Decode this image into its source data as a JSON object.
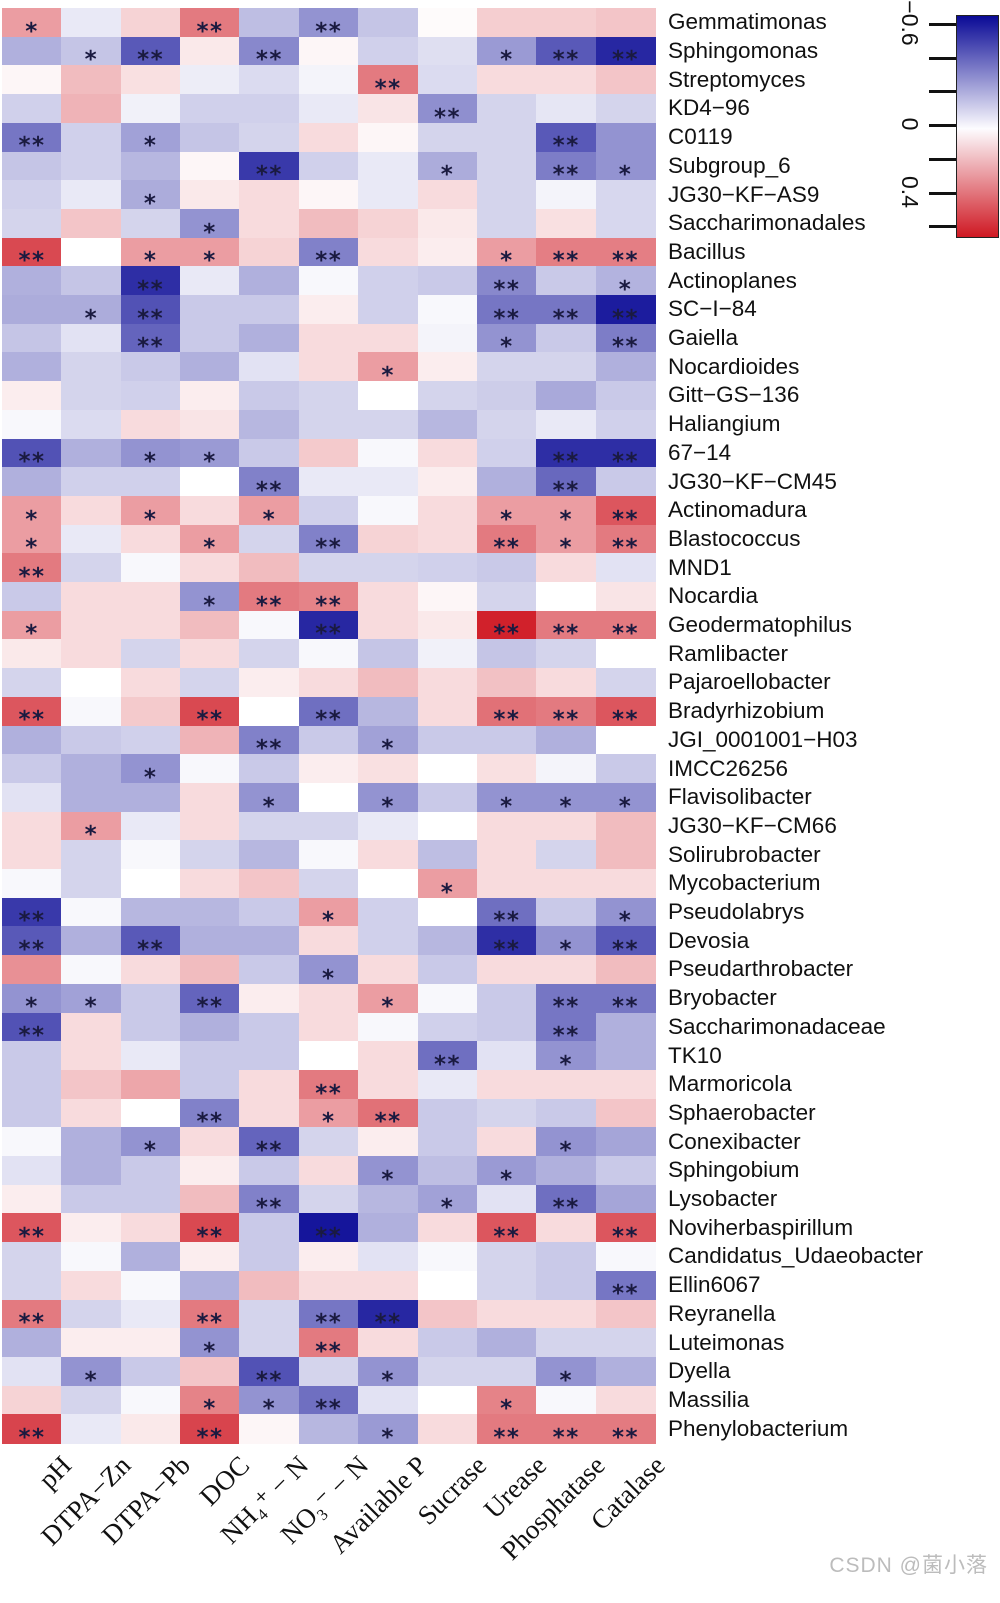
{
  "watermark": "CSDN @菌小落",
  "legend": {
    "tick_count": 7,
    "tick_labels": [
      "−0.6",
      "0",
      "0.4"
    ],
    "tick_label_positions": [
      0,
      3,
      5
    ]
  },
  "chart_data": {
    "type": "heatmap",
    "title": "",
    "xlabel": "",
    "ylabel": "",
    "legend_position": "top-right",
    "grid": false,
    "columns": [
      "pH",
      "DTPA−Zn",
      "DTPA−Pb",
      "DOC",
      "NH₄⁺ − N",
      "NO₃⁻ − N",
      "Available P",
      "Sucrase",
      "Urease",
      "Phosphatase",
      "Catalase"
    ],
    "rows": [
      "Gemmatimonas",
      "Sphingomonas",
      "Streptomyces",
      "KD4−96",
      "C0119",
      "Subgroup_6",
      "JG30−KF−AS9",
      "Saccharimonadales",
      "Bacillus",
      "Actinoplanes",
      "SC−I−84",
      "Gaiella",
      "Nocardioides",
      "Gitt−GS−136",
      "Haliangium",
      "67−14",
      "JG30−KF−CM45",
      "Actinomadura",
      "Blastococcus",
      "MND1",
      "Nocardia",
      "Geodermatophilus",
      "Ramlibacter",
      "Pajaroellobacter",
      "Bradyrhizobium",
      "JGI_0001001−H03",
      "IMCC26256",
      "Flavisolibacter",
      "JG30−KF−CM66",
      "Solirubrobacter",
      "Mycobacterium",
      "Pseudolabrys",
      "Devosia",
      "Pseudarthrobacter",
      "Bryobacter",
      "Saccharimonadaceae",
      "TK10",
      "Marmoricola",
      "Sphaerobacter",
      "Conexibacter",
      "Sphingobium",
      "Lysobacter",
      "Noviherbaspirillum",
      "Candidatus_Udaeobacter",
      "Ellin6067",
      "Reyranella",
      "Luteimonas",
      "Dyella",
      "Massilia",
      "Phenylobacterium"
    ],
    "colorscale": {
      "negative_color": "#0a0a96",
      "zero_color": "#ffffff",
      "positive_color": "#cf1822",
      "negative_max": -0.68,
      "positive_max": 0.52,
      "legend_min": -0.6,
      "legend_max": 0.6
    },
    "values": [
      [
        0.22,
        -0.06,
        0.1,
        0.3,
        -0.18,
        -0.3,
        -0.16,
        0.01,
        0.11,
        0.11,
        0.13
      ],
      [
        -0.22,
        -0.16,
        -0.46,
        0.05,
        -0.33,
        0.02,
        -0.13,
        -0.09,
        -0.28,
        -0.46,
        -0.6
      ],
      [
        0.02,
        0.15,
        0.07,
        -0.05,
        -0.1,
        -0.03,
        0.3,
        -0.1,
        0.08,
        0.08,
        0.13
      ],
      [
        -0.13,
        0.17,
        -0.04,
        -0.13,
        -0.13,
        -0.06,
        0.06,
        -0.31,
        -0.12,
        -0.07,
        -0.12
      ],
      [
        -0.38,
        -0.13,
        -0.26,
        -0.16,
        -0.12,
        0.08,
        0.02,
        -0.12,
        -0.12,
        -0.46,
        -0.3
      ],
      [
        -0.16,
        -0.13,
        -0.2,
        0.02,
        -0.55,
        -0.13,
        -0.06,
        -0.23,
        -0.12,
        -0.36,
        -0.3
      ],
      [
        -0.13,
        -0.06,
        -0.23,
        0.05,
        0.08,
        0.02,
        -0.06,
        0.08,
        -0.12,
        -0.03,
        -0.11
      ],
      [
        -0.12,
        0.13,
        -0.12,
        -0.3,
        0.08,
        0.15,
        0.1,
        0.05,
        -0.12,
        0.07,
        -0.11
      ],
      [
        0.41,
        0.0,
        0.22,
        0.22,
        0.1,
        -0.35,
        0.08,
        0.04,
        0.22,
        0.29,
        0.29
      ],
      [
        -0.22,
        -0.16,
        -0.58,
        -0.06,
        -0.22,
        -0.02,
        -0.13,
        -0.15,
        -0.33,
        -0.15,
        -0.21
      ],
      [
        -0.23,
        -0.23,
        -0.48,
        -0.15,
        -0.15,
        0.04,
        -0.13,
        -0.02,
        -0.38,
        -0.38,
        -0.63
      ],
      [
        -0.16,
        -0.08,
        -0.43,
        -0.15,
        -0.22,
        0.08,
        0.08,
        -0.03,
        -0.3,
        -0.15,
        -0.36
      ],
      [
        -0.22,
        -0.12,
        -0.15,
        -0.22,
        -0.08,
        0.08,
        0.22,
        0.04,
        -0.12,
        -0.12,
        -0.22
      ],
      [
        0.04,
        -0.12,
        -0.13,
        0.04,
        -0.15,
        -0.12,
        0.0,
        -0.12,
        -0.14,
        -0.24,
        -0.15
      ],
      [
        -0.02,
        -0.1,
        0.08,
        0.06,
        -0.2,
        -0.12,
        -0.12,
        -0.2,
        -0.12,
        -0.06,
        -0.13
      ],
      [
        -0.48,
        -0.22,
        -0.3,
        -0.28,
        -0.15,
        0.12,
        -0.02,
        0.08,
        -0.13,
        -0.58,
        -0.58
      ],
      [
        -0.22,
        -0.13,
        -0.13,
        0.0,
        -0.35,
        -0.06,
        -0.06,
        0.04,
        -0.22,
        -0.42,
        -0.15
      ],
      [
        0.22,
        0.08,
        0.22,
        0.08,
        0.22,
        -0.13,
        -0.02,
        0.08,
        0.22,
        0.22,
        0.38
      ],
      [
        0.22,
        -0.06,
        0.08,
        0.22,
        -0.12,
        -0.35,
        0.1,
        0.08,
        0.3,
        0.22,
        0.3
      ],
      [
        0.3,
        -0.12,
        -0.02,
        0.08,
        0.15,
        -0.12,
        -0.12,
        -0.13,
        -0.15,
        0.08,
        -0.08
      ],
      [
        -0.15,
        0.08,
        0.08,
        -0.3,
        0.3,
        0.28,
        0.08,
        0.02,
        -0.12,
        0.0,
        0.06
      ],
      [
        0.22,
        0.08,
        0.08,
        0.15,
        -0.02,
        -0.6,
        0.08,
        0.05,
        0.5,
        0.3,
        0.3
      ],
      [
        0.05,
        0.08,
        -0.12,
        0.08,
        -0.12,
        -0.02,
        -0.16,
        -0.04,
        -0.16,
        -0.12,
        0.0
      ],
      [
        -0.12,
        0.0,
        0.08,
        -0.12,
        0.04,
        0.08,
        0.15,
        0.08,
        0.14,
        0.08,
        -0.12
      ],
      [
        0.38,
        -0.02,
        0.12,
        0.41,
        0.0,
        -0.4,
        -0.2,
        0.08,
        0.32,
        0.3,
        0.38
      ],
      [
        -0.22,
        -0.15,
        -0.13,
        0.17,
        -0.35,
        -0.15,
        -0.26,
        -0.15,
        -0.15,
        -0.22,
        0.0
      ],
      [
        -0.15,
        -0.22,
        -0.3,
        -0.02,
        -0.15,
        0.04,
        0.07,
        0.0,
        0.07,
        -0.03,
        -0.15
      ],
      [
        -0.08,
        -0.22,
        -0.22,
        0.08,
        -0.3,
        0.0,
        -0.3,
        -0.15,
        -0.3,
        -0.3,
        -0.3
      ],
      [
        0.08,
        0.22,
        -0.06,
        0.08,
        -0.12,
        -0.12,
        -0.06,
        0.0,
        0.08,
        0.08,
        0.15
      ],
      [
        0.08,
        -0.12,
        -0.02,
        -0.12,
        -0.2,
        -0.02,
        0.08,
        -0.18,
        0.08,
        -0.12,
        0.15
      ],
      [
        -0.02,
        -0.12,
        0.0,
        0.08,
        0.13,
        -0.12,
        0.0,
        0.22,
        0.08,
        0.08,
        0.08
      ],
      [
        -0.55,
        -0.02,
        -0.2,
        -0.2,
        -0.15,
        0.22,
        -0.13,
        0.0,
        -0.4,
        -0.15,
        -0.3
      ],
      [
        -0.46,
        -0.22,
        -0.46,
        -0.22,
        -0.22,
        0.08,
        -0.13,
        -0.2,
        -0.58,
        -0.3,
        -0.46
      ],
      [
        0.25,
        -0.02,
        0.08,
        0.15,
        -0.15,
        -0.3,
        0.08,
        -0.15,
        0.08,
        0.08,
        0.15
      ],
      [
        -0.3,
        -0.26,
        -0.15,
        -0.43,
        0.04,
        0.08,
        0.22,
        -0.02,
        -0.15,
        -0.38,
        -0.38
      ],
      [
        -0.48,
        0.08,
        -0.15,
        -0.22,
        -0.15,
        0.08,
        -0.02,
        -0.13,
        -0.15,
        -0.38,
        -0.22
      ],
      [
        -0.15,
        0.08,
        -0.06,
        -0.15,
        -0.15,
        0.0,
        0.08,
        -0.4,
        -0.08,
        -0.3,
        -0.22
      ],
      [
        -0.15,
        0.13,
        0.2,
        -0.15,
        0.08,
        0.3,
        0.08,
        -0.06,
        0.08,
        0.08,
        0.08
      ],
      [
        -0.15,
        0.08,
        0.0,
        -0.35,
        0.08,
        0.22,
        0.32,
        -0.15,
        -0.12,
        -0.15,
        0.13
      ],
      [
        -0.02,
        -0.22,
        -0.3,
        0.08,
        -0.43,
        -0.12,
        0.04,
        -0.15,
        0.08,
        -0.3,
        -0.25
      ],
      [
        -0.08,
        -0.22,
        -0.15,
        0.04,
        -0.15,
        0.08,
        -0.3,
        -0.18,
        -0.28,
        -0.22,
        -0.15
      ],
      [
        0.04,
        -0.15,
        -0.15,
        0.15,
        -0.35,
        -0.12,
        -0.2,
        -0.26,
        -0.08,
        -0.4,
        -0.25
      ],
      [
        0.38,
        0.04,
        0.08,
        0.41,
        -0.15,
        -0.65,
        -0.22,
        0.08,
        0.38,
        0.08,
        0.38
      ],
      [
        -0.12,
        -0.02,
        -0.22,
        0.04,
        -0.15,
        0.04,
        -0.08,
        -0.02,
        -0.12,
        -0.15,
        -0.02
      ],
      [
        -0.12,
        0.08,
        -0.02,
        -0.22,
        0.15,
        0.08,
        0.08,
        0.0,
        -0.12,
        -0.15,
        -0.38
      ],
      [
        0.3,
        -0.12,
        -0.06,
        0.3,
        -0.12,
        -0.38,
        -0.6,
        0.13,
        0.08,
        0.08,
        0.13
      ],
      [
        -0.22,
        0.04,
        0.04,
        -0.3,
        -0.12,
        0.3,
        0.08,
        -0.15,
        -0.22,
        -0.12,
        -0.12
      ],
      [
        -0.08,
        -0.3,
        -0.15,
        0.13,
        -0.48,
        -0.12,
        -0.3,
        -0.12,
        -0.12,
        -0.3,
        -0.22
      ],
      [
        0.1,
        -0.12,
        -0.02,
        0.28,
        -0.3,
        -0.4,
        -0.08,
        0.0,
        0.28,
        -0.02,
        0.08
      ],
      [
        0.42,
        -0.06,
        0.05,
        0.42,
        0.02,
        -0.2,
        -0.28,
        0.08,
        0.3,
        0.3,
        0.3
      ]
    ],
    "significance": [
      [
        "*",
        "",
        "",
        "**",
        "",
        "**",
        "",
        "",
        "",
        "",
        ""
      ],
      [
        "",
        "*",
        "**",
        "",
        "**",
        "",
        "",
        "",
        "*",
        "**",
        "**"
      ],
      [
        "",
        "",
        "",
        "",
        "",
        "",
        "**",
        "",
        "",
        "",
        ""
      ],
      [
        "",
        "",
        "",
        "",
        "",
        "",
        "",
        "**",
        "",
        "",
        ""
      ],
      [
        "**",
        "",
        "*",
        "",
        "",
        "",
        "",
        "",
        "",
        "**",
        ""
      ],
      [
        "",
        "",
        "",
        "",
        "**",
        "",
        "",
        "*",
        "",
        "**",
        "*"
      ],
      [
        "",
        "",
        "*",
        "",
        "",
        "",
        "",
        "",
        "",
        "",
        ""
      ],
      [
        "",
        "",
        "",
        "*",
        "",
        "",
        "",
        "",
        "",
        "",
        ""
      ],
      [
        "**",
        "",
        "*",
        "*",
        "",
        "**",
        "",
        "",
        "*",
        "**",
        "**"
      ],
      [
        "",
        "",
        "**",
        "",
        "",
        "",
        "",
        "",
        "**",
        "",
        "*"
      ],
      [
        "",
        "*",
        "**",
        "",
        "",
        "",
        "",
        "",
        "**",
        "**",
        "**"
      ],
      [
        "",
        "",
        "**",
        "",
        "",
        "",
        "",
        "",
        "*",
        "",
        "**"
      ],
      [
        "",
        "",
        "",
        "",
        "",
        "",
        "*",
        "",
        "",
        "",
        ""
      ],
      [
        "",
        "",
        "",
        "",
        "",
        "",
        "",
        "",
        "",
        "",
        ""
      ],
      [
        "",
        "",
        "",
        "",
        "",
        "",
        "",
        "",
        "",
        "",
        ""
      ],
      [
        "**",
        "",
        "*",
        "*",
        "",
        "",
        "",
        "",
        "",
        "**",
        "**"
      ],
      [
        "",
        "",
        "",
        "",
        "**",
        "",
        "",
        "",
        "",
        "**",
        ""
      ],
      [
        "*",
        "",
        "*",
        "",
        "*",
        "",
        "",
        "",
        "*",
        "*",
        "**"
      ],
      [
        "*",
        "",
        "",
        "*",
        "",
        "**",
        "",
        "",
        "**",
        "*",
        "**"
      ],
      [
        "**",
        "",
        "",
        "",
        "",
        "",
        "",
        "",
        "",
        "",
        ""
      ],
      [
        "",
        "",
        "",
        "*",
        "**",
        "**",
        "",
        "",
        "",
        "",
        ""
      ],
      [
        "*",
        "",
        "",
        "",
        "",
        "**",
        "",
        "",
        "**",
        "**",
        "**"
      ],
      [
        "",
        "",
        "",
        "",
        "",
        "",
        "",
        "",
        "",
        "",
        ""
      ],
      [
        "",
        "",
        "",
        "",
        "",
        "",
        "",
        "",
        "",
        "",
        ""
      ],
      [
        "**",
        "",
        "",
        "**",
        "",
        "**",
        "",
        "",
        "**",
        "**",
        "**"
      ],
      [
        "",
        "",
        "",
        "",
        "**",
        "",
        "*",
        "",
        "",
        "",
        ""
      ],
      [
        "",
        "",
        "*",
        "",
        "",
        "",
        "",
        "",
        "",
        "",
        ""
      ],
      [
        "",
        "",
        "",
        "",
        "*",
        "",
        "*",
        "",
        "*",
        "*",
        "*"
      ],
      [
        "",
        "*",
        "",
        "",
        "",
        "",
        "",
        "",
        "",
        "",
        ""
      ],
      [
        "",
        "",
        "",
        "",
        "",
        "",
        "",
        "",
        "",
        "",
        ""
      ],
      [
        "",
        "",
        "",
        "",
        "",
        "",
        "",
        "*",
        "",
        "",
        ""
      ],
      [
        "**",
        "",
        "",
        "",
        "",
        "*",
        "",
        "",
        "**",
        "",
        "*"
      ],
      [
        "**",
        "",
        "**",
        "",
        "",
        "",
        "",
        "",
        "**",
        "*",
        "**"
      ],
      [
        "",
        "",
        "",
        "",
        "",
        "*",
        "",
        "",
        "",
        "",
        ""
      ],
      [
        "*",
        "*",
        "",
        "**",
        "",
        "",
        "*",
        "",
        "",
        "**",
        "**"
      ],
      [
        "**",
        "",
        "",
        "",
        "",
        "",
        "",
        "",
        "",
        "**",
        ""
      ],
      [
        "",
        "",
        "",
        "",
        "",
        "",
        "",
        "**",
        "",
        "*",
        ""
      ],
      [
        "",
        "",
        "",
        "",
        "",
        "**",
        "",
        "",
        "",
        "",
        ""
      ],
      [
        "",
        "",
        "",
        "**",
        "",
        "*",
        "**",
        "",
        "",
        "",
        ""
      ],
      [
        "",
        "",
        "*",
        "",
        "**",
        "",
        "",
        "",
        "",
        "*",
        ""
      ],
      [
        "",
        "",
        "",
        "",
        "",
        "",
        "*",
        "",
        "*",
        "",
        ""
      ],
      [
        "",
        "",
        "",
        "",
        "**",
        "",
        "",
        "*",
        "",
        "**",
        ""
      ],
      [
        "**",
        "",
        "",
        "**",
        "",
        "**",
        "",
        "",
        "**",
        "",
        "**"
      ],
      [
        "",
        "",
        "",
        "",
        "",
        "",
        "",
        "",
        "",
        "",
        ""
      ],
      [
        "",
        "",
        "",
        "",
        "",
        "",
        "",
        "",
        "",
        "",
        "**"
      ],
      [
        "**",
        "",
        "",
        "**",
        "",
        "**",
        "**",
        "",
        "",
        "",
        ""
      ],
      [
        "",
        "",
        "",
        "*",
        "",
        "**",
        "",
        "",
        "",
        "",
        ""
      ],
      [
        "",
        "*",
        "",
        "",
        "**",
        "",
        "*",
        "",
        "",
        "*",
        ""
      ],
      [
        "",
        "",
        "",
        "*",
        "*",
        "**",
        "",
        "",
        "*",
        "",
        ""
      ],
      [
        "**",
        "",
        "",
        "**",
        "",
        "",
        "*",
        "",
        "**",
        "**",
        "**"
      ]
    ]
  }
}
